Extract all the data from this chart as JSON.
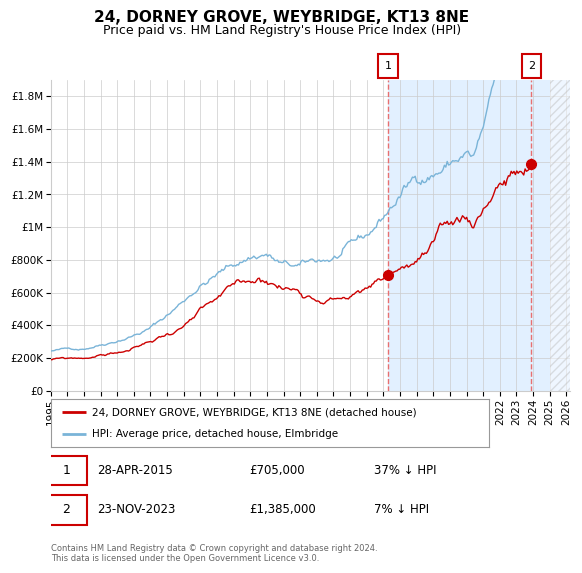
{
  "title": "24, DORNEY GROVE, WEYBRIDGE, KT13 8NE",
  "subtitle": "Price paid vs. HM Land Registry's House Price Index (HPI)",
  "ylim": [
    0,
    1900000
  ],
  "xlim_start": 1995.0,
  "xlim_end": 2026.2,
  "yticks": [
    0,
    200000,
    400000,
    600000,
    800000,
    1000000,
    1200000,
    1400000,
    1600000,
    1800000
  ],
  "ytick_labels": [
    "£0",
    "£200K",
    "£400K",
    "£600K",
    "£800K",
    "£1M",
    "£1.2M",
    "£1.4M",
    "£1.6M",
    "£1.8M"
  ],
  "xticks": [
    1995,
    1996,
    1997,
    1998,
    1999,
    2000,
    2001,
    2002,
    2003,
    2004,
    2005,
    2006,
    2007,
    2008,
    2009,
    2010,
    2011,
    2012,
    2013,
    2014,
    2015,
    2016,
    2017,
    2018,
    2019,
    2020,
    2021,
    2022,
    2023,
    2024,
    2025,
    2026
  ],
  "hpi_color": "#7ab4d8",
  "price_color": "#cc0000",
  "sale1_date": 2015.3,
  "sale1_price": 705000,
  "sale1_label": "1",
  "sale2_date": 2023.9,
  "sale2_price": 1385000,
  "sale2_label": "2",
  "shade_color": "#ddeeff",
  "vline_color": "#e87070",
  "legend_line1": "24, DORNEY GROVE, WEYBRIDGE, KT13 8NE (detached house)",
  "legend_line2": "HPI: Average price, detached house, Elmbridge",
  "annotation1_date": "28-APR-2015",
  "annotation1_price": "£705,000",
  "annotation1_hpi": "37% ↓ HPI",
  "annotation2_date": "23-NOV-2023",
  "annotation2_price": "£1,385,000",
  "annotation2_hpi": "7% ↓ HPI",
  "footer": "Contains HM Land Registry data © Crown copyright and database right 2024.\nThis data is licensed under the Open Government Licence v3.0.",
  "background_color": "#ffffff",
  "grid_color": "#cccccc",
  "title_fontsize": 11,
  "subtitle_fontsize": 9,
  "tick_fontsize": 7.5
}
